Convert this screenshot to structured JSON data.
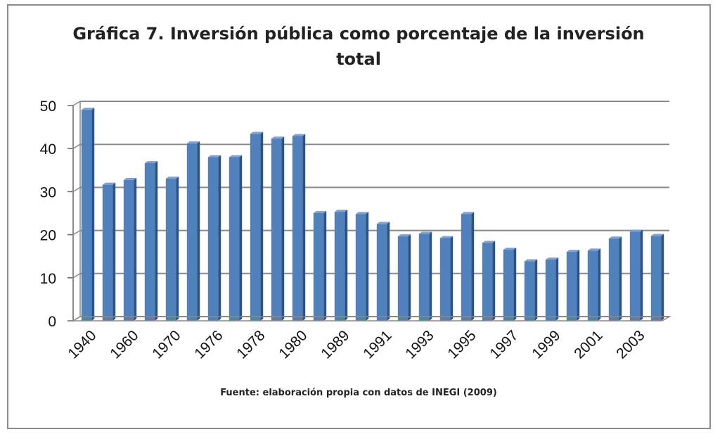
{
  "chart_data": {
    "type": "bar",
    "title": "Gráfica 7. Inversión pública como porcentaje de la inversión total",
    "source": "Fuente: elaboración propia con datos de INEGI (2009)",
    "ylim": [
      0,
      50
    ],
    "yticks": [
      0,
      10,
      20,
      30,
      40,
      50
    ],
    "grid": true,
    "categories": [
      "1940",
      "",
      "1960",
      "",
      "1970",
      "",
      "1976",
      "",
      "1978",
      "",
      "1980",
      "",
      "1989",
      "",
      "1991",
      "",
      "1993",
      "",
      "1995",
      "",
      "1997",
      "",
      "1999",
      "",
      "2001",
      "",
      "2003",
      ""
    ],
    "values": [
      49,
      31.6,
      32.7,
      36.6,
      33,
      41.2,
      38,
      38,
      43.4,
      42.3,
      42.9,
      25,
      25.3,
      24.8,
      22.5,
      19.6,
      20.2,
      19.2,
      24.8,
      18.1,
      16.5,
      13.8,
      14.2,
      16,
      16.3,
      19.1,
      20.7,
      19.7
    ],
    "bar_color": "#4f81bd"
  }
}
